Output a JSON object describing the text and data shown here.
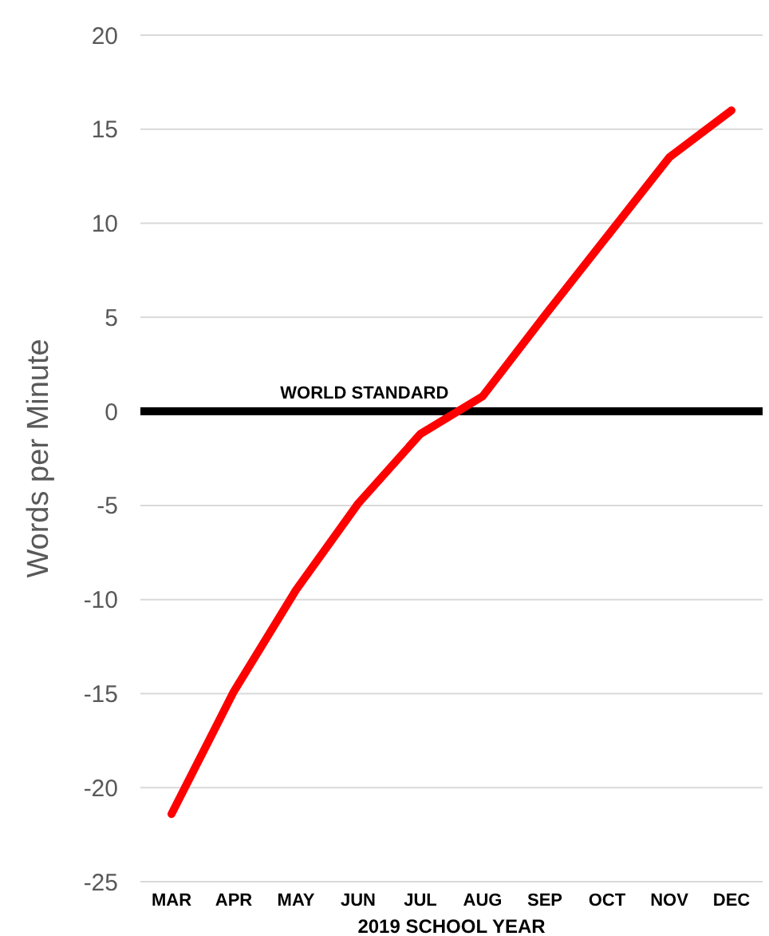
{
  "chart_data": {
    "type": "line",
    "xlabel": "2019 SCHOOL YEAR",
    "ylabel": "Words per Minute",
    "categories": [
      "MAR",
      "APR",
      "MAY",
      "JUN",
      "JUL",
      "AUG",
      "SEP",
      "OCT",
      "NOV",
      "DEC"
    ],
    "series": [
      {
        "color": "#ff0000",
        "values": [
          -21.4,
          -14.9,
          -9.5,
          -4.9,
          -1.2,
          0.8,
          5.1,
          9.3,
          13.5,
          16.0
        ]
      }
    ],
    "ylim": [
      -25,
      20
    ],
    "yticks": [
      -25,
      -20,
      -15,
      -10,
      -5,
      0,
      5,
      10,
      15,
      20
    ],
    "grid": "y",
    "marker": "none",
    "line_style": "solid",
    "ref_lines": [
      {
        "axis": "y",
        "value": 0,
        "label": "WORLD STANDARD",
        "color": "#000000"
      }
    ]
  }
}
